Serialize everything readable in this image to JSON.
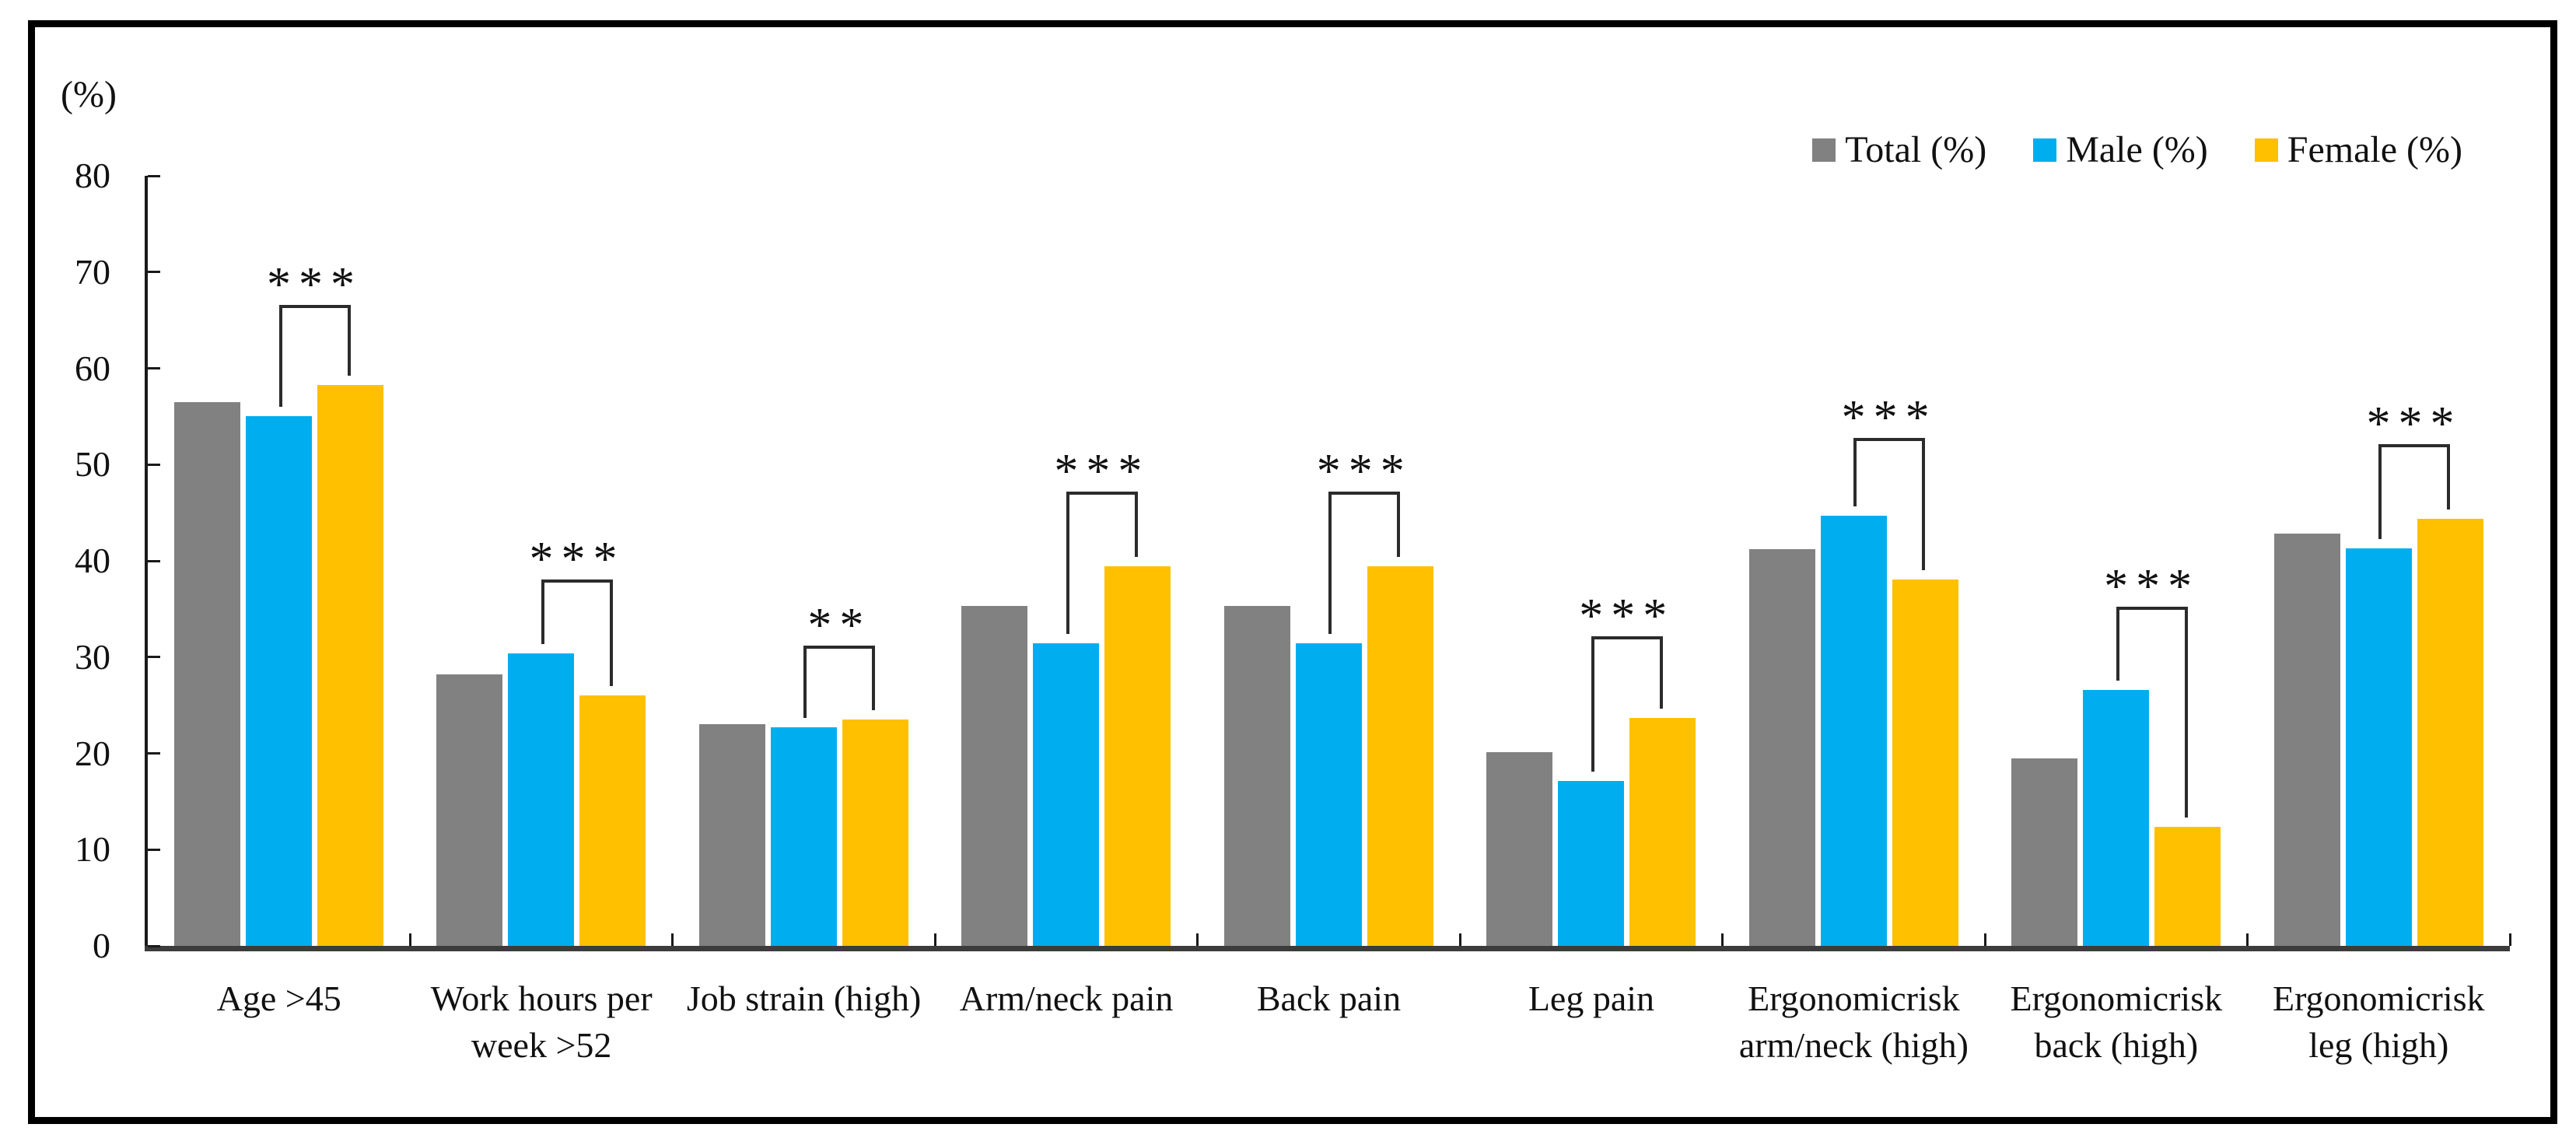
{
  "chart_data": {
    "type": "bar",
    "title": "",
    "ylabel": "(%)",
    "ylim": [
      0,
      80
    ],
    "yticks": [
      0,
      10,
      20,
      30,
      40,
      50,
      60,
      70,
      80
    ],
    "grid": false,
    "legend_position": "top-right",
    "categories": [
      "Age >45",
      "Work hours per week >52",
      "Job strain (high)",
      "Arm/neck pain",
      "Back pain",
      "Leg pain",
      "Ergonomicrisk arm/neck (high)",
      "Ergonomicrisk back (high)",
      "Ergonomicrisk leg (high)"
    ],
    "category_label_lines": [
      [
        "Age >45"
      ],
      [
        "Work hours per",
        "week >52"
      ],
      [
        "Job strain (high)"
      ],
      [
        "Arm/neck pain"
      ],
      [
        "Back pain"
      ],
      [
        "Leg pain"
      ],
      [
        "Ergonomicrisk",
        "arm/neck (high)"
      ],
      [
        "Ergonomicrisk",
        "back (high)"
      ],
      [
        "Ergonomicrisk",
        "leg (high)"
      ]
    ],
    "series": [
      {
        "name": "Total (%)",
        "color": "#818181",
        "values": [
          56.5,
          28.2,
          23.0,
          35.3,
          35.3,
          20.1,
          41.2,
          19.5,
          42.8
        ]
      },
      {
        "name": "Male (%)",
        "color": "#00AEEF",
        "values": [
          55.0,
          30.4,
          22.7,
          31.4,
          31.4,
          17.1,
          44.7,
          26.6,
          41.3
        ]
      },
      {
        "name": "Female (%)",
        "color": "#FFC000",
        "values": [
          58.3,
          26.0,
          23.5,
          39.4,
          39.4,
          23.7,
          38.1,
          12.4,
          44.4
        ]
      }
    ],
    "significance": [
      {
        "category_index": 0,
        "stars": "***",
        "between": [
          "Male (%)",
          "Female (%)"
        ],
        "bracket_top": 66.6
      },
      {
        "category_index": 1,
        "stars": "***",
        "between": [
          "Male (%)",
          "Female (%)"
        ],
        "bracket_top": 38.1
      },
      {
        "category_index": 2,
        "stars": "**",
        "between": [
          "Male (%)",
          "Female (%)"
        ],
        "bracket_top": 31.2
      },
      {
        "category_index": 3,
        "stars": "***",
        "between": [
          "Male (%)",
          "Female (%)"
        ],
        "bracket_top": 47.2
      },
      {
        "category_index": 4,
        "stars": "***",
        "between": [
          "Male (%)",
          "Female (%)"
        ],
        "bracket_top": 47.2
      },
      {
        "category_index": 5,
        "stars": "***",
        "between": [
          "Male (%)",
          "Female (%)"
        ],
        "bracket_top": 32.2
      },
      {
        "category_index": 6,
        "stars": "***",
        "between": [
          "Male (%)",
          "Female (%)"
        ],
        "bracket_top": 52.8
      },
      {
        "category_index": 7,
        "stars": "***",
        "between": [
          "Male (%)",
          "Female (%)"
        ],
        "bracket_top": 35.2
      },
      {
        "category_index": 8,
        "stars": "***",
        "between": [
          "Male (%)",
          "Female (%)"
        ],
        "bracket_top": 52.1
      }
    ],
    "palette": {
      "axis": "#1a1a1a",
      "baseline": "#3c3c3c",
      "bracket": "#2b2b2b",
      "frame": "#000000",
      "background": "#ffffff"
    }
  }
}
